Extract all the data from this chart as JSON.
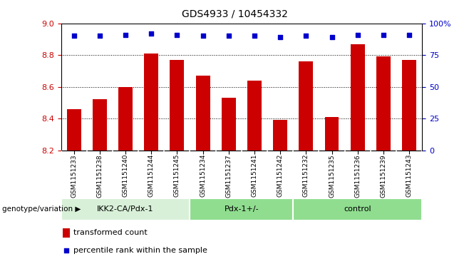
{
  "title": "GDS4933 / 10454332",
  "samples": [
    "GSM1151233",
    "GSM1151238",
    "GSM1151240",
    "GSM1151244",
    "GSM1151245",
    "GSM1151234",
    "GSM1151237",
    "GSM1151241",
    "GSM1151242",
    "GSM1151232",
    "GSM1151235",
    "GSM1151236",
    "GSM1151239",
    "GSM1151243"
  ],
  "bar_values": [
    8.46,
    8.52,
    8.6,
    8.81,
    8.77,
    8.67,
    8.53,
    8.64,
    8.39,
    8.76,
    8.41,
    8.87,
    8.79,
    8.77
  ],
  "percentile_values": [
    90,
    90,
    91,
    92,
    91,
    90,
    90,
    90,
    89,
    90,
    89,
    91,
    91,
    91
  ],
  "groups": [
    {
      "label": "IKK2-CA/Pdx-1",
      "count": 5,
      "color": "#d8f0d8"
    },
    {
      "label": "Pdx-1+/-",
      "count": 4,
      "color": "#90dd90"
    },
    {
      "label": "control",
      "count": 5,
      "color": "#90dd90"
    }
  ],
  "bar_color": "#cc0000",
  "dot_color": "#0000cc",
  "ylim_left": [
    8.2,
    9.0
  ],
  "ylim_right": [
    0,
    100
  ],
  "yticks_left": [
    8.2,
    8.4,
    8.6,
    8.8,
    9.0
  ],
  "yticks_right": [
    0,
    25,
    50,
    75,
    100
  ],
  "grid_values": [
    8.4,
    8.6,
    8.8
  ],
  "ylabel_left_color": "#cc0000",
  "ylabel_right_color": "#0000cc",
  "legend_bar_label": "transformed count",
  "legend_dot_label": "percentile rank within the sample",
  "genotype_label": "genotype/variation",
  "tick_bg_color": "#d8d8d8",
  "plot_bg_color": "#ffffff"
}
